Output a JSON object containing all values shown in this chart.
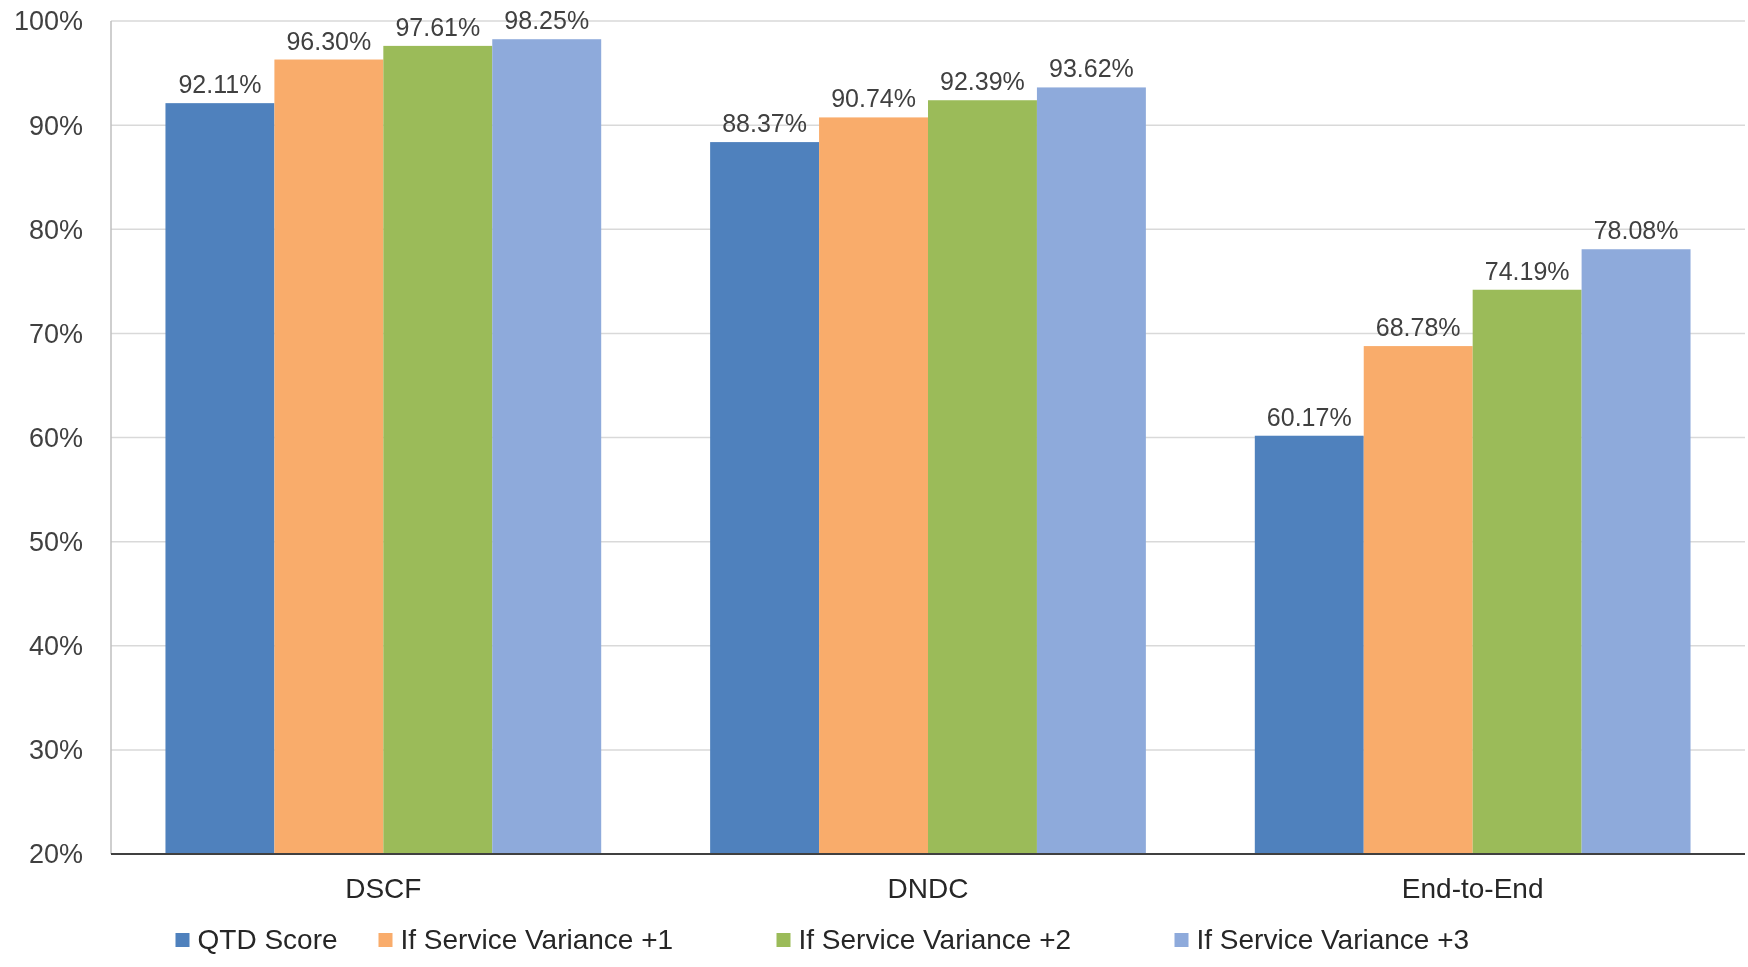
{
  "chart_data": {
    "type": "bar",
    "categories": [
      "DSCF",
      "DNDC",
      "End-to-End"
    ],
    "series": [
      {
        "name": "QTD Score",
        "color": "#4f81bd",
        "values": [
          92.11,
          88.37,
          60.17
        ],
        "value_labels": [
          "92.11%",
          "88.37%",
          "60.17%"
        ]
      },
      {
        "name": "If Service Variance +1",
        "color": "#f9ac6b",
        "values": [
          96.3,
          90.74,
          68.78
        ],
        "value_labels": [
          "96.30%",
          "90.74%",
          "68.78%"
        ]
      },
      {
        "name": "If Service Variance +2",
        "color": "#9bbb59",
        "values": [
          97.61,
          92.39,
          74.19
        ],
        "value_labels": [
          "97.61%",
          "92.39%",
          "74.19%"
        ]
      },
      {
        "name": "If Service Variance +3",
        "color": "#8eaadb",
        "values": [
          98.25,
          93.62,
          78.08
        ],
        "value_labels": [
          "98.25%",
          "93.62%",
          "78.08%"
        ]
      }
    ],
    "ylim": [
      20,
      100
    ],
    "yticks": [
      {
        "value": 20,
        "label": "20%"
      },
      {
        "value": 30,
        "label": "30%"
      },
      {
        "value": 40,
        "label": "40%"
      },
      {
        "value": 50,
        "label": "50%"
      },
      {
        "value": 60,
        "label": "60%"
      },
      {
        "value": 70,
        "label": "70%"
      },
      {
        "value": 80,
        "label": "80%"
      },
      {
        "value": 90,
        "label": "90%"
      },
      {
        "value": 100,
        "label": "100%"
      }
    ],
    "grid": "y",
    "legend": "bottom"
  }
}
